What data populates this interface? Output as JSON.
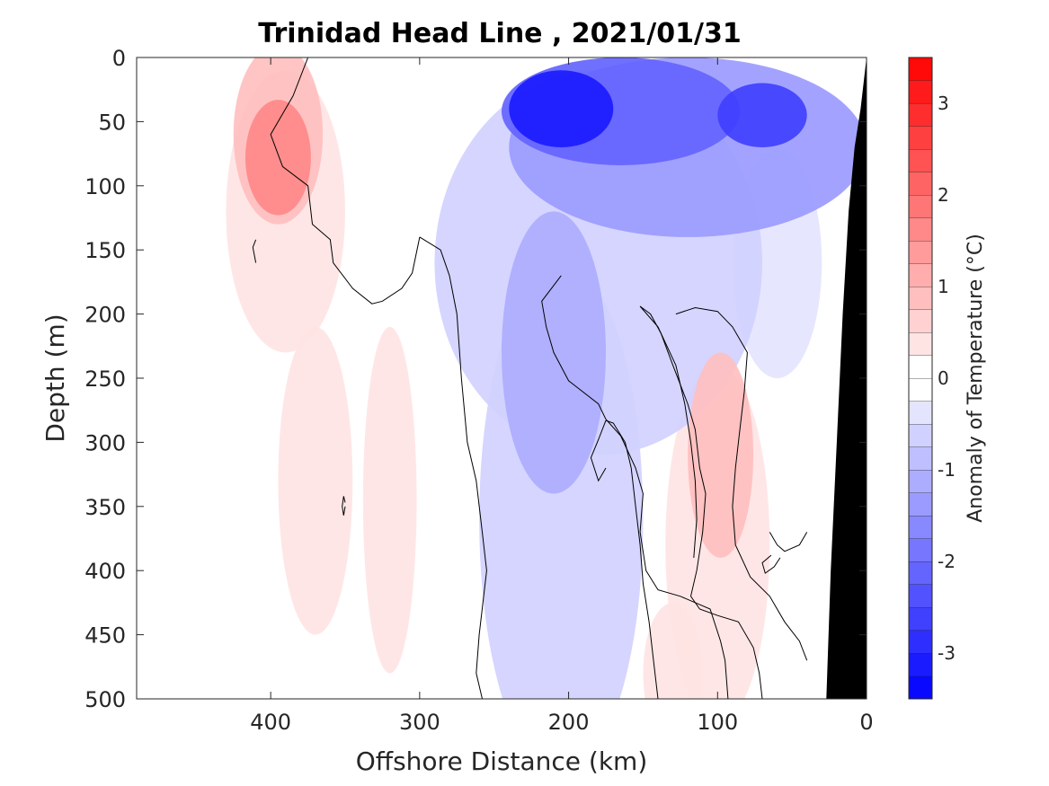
{
  "chart_data": {
    "type": "heatmap",
    "title": "Trinidad Head Line , 2021/01/31",
    "xlabel": "Offshore Distance (km)",
    "ylabel": "Depth (m)",
    "xlim": [
      490,
      0
    ],
    "ylim": [
      0,
      500
    ],
    "x_reversed": true,
    "y_reversed": true,
    "xticks": [
      400,
      300,
      200,
      100,
      0
    ],
    "yticks": [
      0,
      50,
      100,
      150,
      200,
      250,
      300,
      350,
      400,
      450,
      500
    ],
    "colorbar": {
      "label": "Anomaly of Temperature (°C)",
      "range": [
        -3.5,
        3.5
      ],
      "step": 0.25,
      "ticks": [
        -3,
        -2,
        -1,
        0,
        1,
        2,
        3
      ],
      "colormap": "blue-white-red",
      "low_color": "#0000ff",
      "mid_color": "#ffffff",
      "high_color": "#ff0000"
    },
    "zero_contour_color": "#000000",
    "land_color": "#000000",
    "blobs": [
      {
        "x": 395,
        "y": 78,
        "rx": 22,
        "ry": 45,
        "value": 1.7
      },
      {
        "x": 395,
        "y": 60,
        "rx": 30,
        "ry": 70,
        "value": 0.9
      },
      {
        "x": 390,
        "y": 120,
        "rx": 40,
        "ry": 110,
        "value": 0.35
      },
      {
        "x": 320,
        "y": 345,
        "rx": 18,
        "ry": 135,
        "value": 0.35
      },
      {
        "x": 370,
        "y": 330,
        "rx": 25,
        "ry": 120,
        "value": 0.3
      },
      {
        "x": 98,
        "y": 310,
        "rx": 22,
        "ry": 80,
        "value": 0.8
      },
      {
        "x": 100,
        "y": 380,
        "rx": 35,
        "ry": 140,
        "value": 0.35
      },
      {
        "x": 130,
        "y": 480,
        "rx": 20,
        "ry": 55,
        "value": 0.3
      },
      {
        "x": 205,
        "y": 40,
        "rx": 35,
        "ry": 30,
        "value": -3.0
      },
      {
        "x": 70,
        "y": 45,
        "rx": 30,
        "ry": 25,
        "value": -2.7
      },
      {
        "x": 165,
        "y": 42,
        "rx": 80,
        "ry": 42,
        "value": -2.2
      },
      {
        "x": 120,
        "y": 70,
        "rx": 120,
        "ry": 70,
        "value": -1.3
      },
      {
        "x": 210,
        "y": 230,
        "rx": 35,
        "ry": 110,
        "value": -1.0
      },
      {
        "x": 205,
        "y": 360,
        "rx": 55,
        "ry": 200,
        "value": -0.6
      },
      {
        "x": 180,
        "y": 160,
        "rx": 110,
        "ry": 150,
        "value": -0.5
      },
      {
        "x": 60,
        "y": 160,
        "rx": 30,
        "ry": 90,
        "value": -0.45
      }
    ],
    "zero_contours": [
      [
        [
          375,
          0
        ],
        [
          385,
          30
        ],
        [
          400,
          60
        ],
        [
          392,
          85
        ],
        [
          375,
          100
        ],
        [
          372,
          130
        ],
        [
          360,
          142
        ],
        [
          358,
          160
        ],
        [
          345,
          180
        ],
        [
          332,
          192
        ],
        [
          325,
          190
        ],
        [
          312,
          180
        ],
        [
          305,
          168
        ],
        [
          300,
          140
        ]
      ],
      [
        [
          300,
          140
        ],
        [
          286,
          150
        ],
        [
          280,
          170
        ],
        [
          275,
          200
        ],
        [
          272,
          250
        ],
        [
          268,
          300
        ],
        [
          262,
          330
        ],
        [
          258,
          370
        ],
        [
          255,
          400
        ],
        [
          260,
          450
        ],
        [
          262,
          480
        ],
        [
          258,
          500
        ]
      ],
      [
        [
          93,
          500
        ],
        [
          95,
          470
        ],
        [
          98,
          455
        ],
        [
          105,
          430
        ],
        [
          125,
          420
        ],
        [
          140,
          415
        ],
        [
          148,
          400
        ],
        [
          152,
          370
        ],
        [
          150,
          340
        ],
        [
          155,
          320
        ],
        [
          165,
          295
        ],
        [
          175,
          282
        ],
        [
          180,
          270
        ],
        [
          200,
          252
        ],
        [
          210,
          230
        ],
        [
          215,
          210
        ],
        [
          218,
          190
        ],
        [
          205,
          170
        ]
      ],
      [
        [
          140,
          500
        ],
        [
          143,
          470
        ],
        [
          146,
          440
        ],
        [
          150,
          410
        ],
        [
          152,
          380
        ],
        [
          155,
          350
        ],
        [
          158,
          320
        ],
        [
          162,
          300
        ],
        [
          170,
          285
        ],
        [
          175,
          283
        ]
      ],
      [
        [
          70,
          500
        ],
        [
          72,
          480
        ],
        [
          76,
          460
        ],
        [
          86,
          440
        ],
        [
          100,
          435
        ],
        [
          112,
          430
        ],
        [
          118,
          420
        ],
        [
          114,
          400
        ],
        [
          110,
          370
        ],
        [
          108,
          340
        ],
        [
          112,
          320
        ],
        [
          115,
          290
        ],
        [
          120,
          270
        ],
        [
          130,
          240
        ],
        [
          138,
          215
        ],
        [
          145,
          200
        ],
        [
          152,
          194
        ]
      ],
      [
        [
          152,
          194
        ],
        [
          140,
          210
        ],
        [
          128,
          240
        ],
        [
          122,
          270
        ],
        [
          118,
          300
        ],
        [
          115,
          330
        ],
        [
          114,
          360
        ],
        [
          116,
          390
        ]
      ],
      [
        [
          40,
          470
        ],
        [
          45,
          455
        ],
        [
          55,
          440
        ],
        [
          65,
          420
        ],
        [
          78,
          405
        ],
        [
          88,
          380
        ],
        [
          90,
          350
        ],
        [
          88,
          320
        ],
        [
          85,
          290
        ],
        [
          82,
          260
        ],
        [
          80,
          230
        ],
        [
          90,
          210
        ],
        [
          100,
          198
        ],
        [
          115,
          195
        ],
        [
          128,
          200
        ]
      ],
      [
        [
          40,
          370
        ],
        [
          45,
          380
        ],
        [
          55,
          385
        ],
        [
          60,
          380
        ],
        [
          65,
          370
        ]
      ],
      [
        [
          410,
          160
        ],
        [
          412,
          148
        ],
        [
          410,
          142
        ]
      ],
      [
        [
          350,
          347
        ],
        [
          351,
          342
        ],
        [
          352,
          350
        ],
        [
          351,
          357
        ],
        [
          350,
          350
        ]
      ],
      [
        [
          175,
          283
        ],
        [
          180,
          298
        ],
        [
          185,
          312
        ],
        [
          180,
          330
        ],
        [
          175,
          320
        ]
      ],
      [
        [
          58,
          390
        ],
        [
          62,
          397
        ],
        [
          68,
          402
        ],
        [
          70,
          394
        ],
        [
          64,
          388
        ]
      ]
    ],
    "land_boundary": [
      [
        0,
        0
      ],
      [
        4,
        40
      ],
      [
        8,
        70
      ],
      [
        12,
        120
      ],
      [
        16,
        200
      ],
      [
        20,
        300
      ],
      [
        24,
        400
      ],
      [
        27,
        500
      ]
    ]
  }
}
